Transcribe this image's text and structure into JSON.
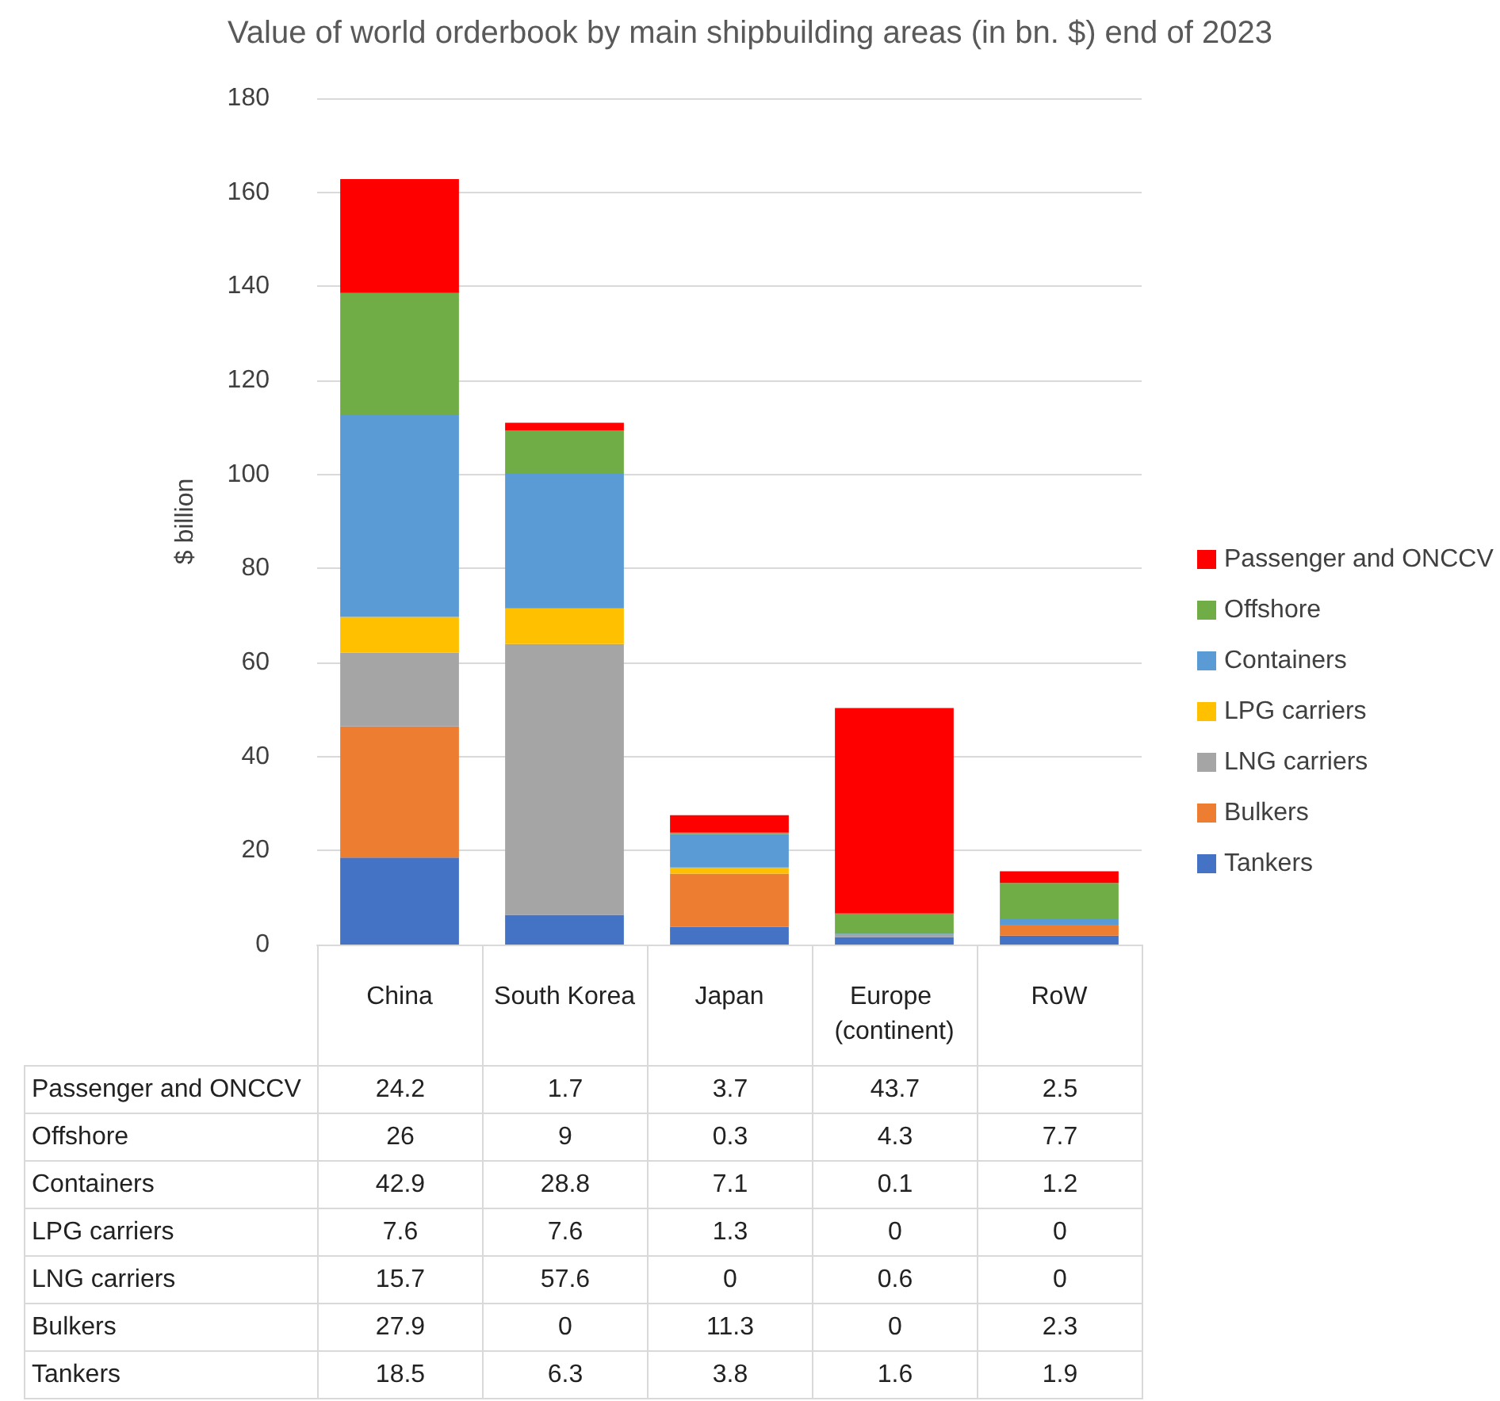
{
  "chart_data": {
    "type": "bar",
    "title": "Value of world orderbook by main shipbuilding areas (in bn. $) end of 2023",
    "ylabel": "$ billion",
    "categories": [
      "China",
      "South Korea",
      "Japan",
      "Europe (continent)",
      "RoW"
    ],
    "stacked": true,
    "ylim": [
      0,
      180
    ],
    "yticks": [
      0,
      20,
      40,
      60,
      80,
      100,
      120,
      140,
      160,
      180
    ],
    "grid": "y",
    "legend": "right",
    "data_labels": true,
    "series": [
      {
        "name": "Tankers",
        "color": "#4472c4",
        "values": [
          18.5,
          6.3,
          3.8,
          1.6,
          1.9
        ]
      },
      {
        "name": "Bulkers",
        "color": "#ed7d31",
        "values": [
          27.9,
          0,
          11.3,
          0,
          2.3
        ]
      },
      {
        "name": "LNG carriers",
        "color": "#a5a5a5",
        "values": [
          15.7,
          57.6,
          0,
          0.6,
          0
        ]
      },
      {
        "name": "LPG carriers",
        "color": "#ffc000",
        "values": [
          7.6,
          7.6,
          1.3,
          0,
          0
        ]
      },
      {
        "name": "Containers",
        "color": "#5b9bd5",
        "values": [
          42.9,
          28.8,
          7.1,
          0.1,
          1.2
        ]
      },
      {
        "name": "Offshore",
        "color": "#70ad47",
        "values": [
          26,
          9,
          0.3,
          4.3,
          7.7
        ]
      },
      {
        "name": "Passenger and ONCCV",
        "color": "#ff0000",
        "values": [
          24.2,
          1.7,
          3.7,
          43.7,
          2.5
        ]
      }
    ]
  }
}
